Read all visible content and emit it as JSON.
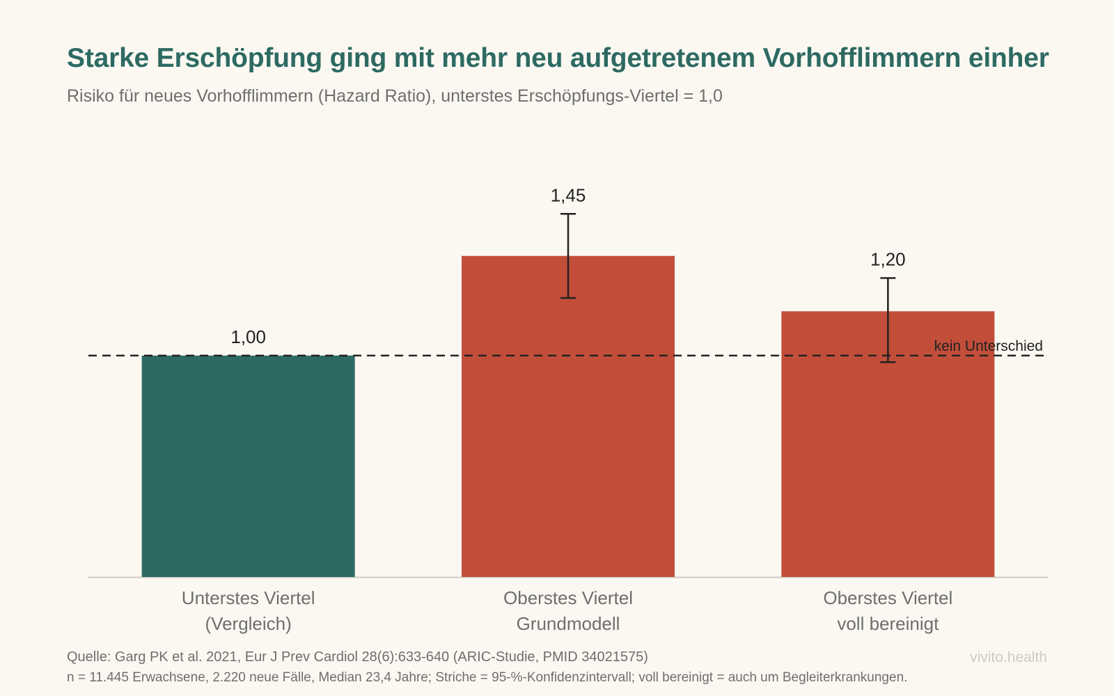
{
  "chart_data": {
    "type": "bar",
    "title": "Starke Erschöpfung ging mit mehr neu aufgetretenem Vorhofflimmern einher",
    "subtitle": "Risiko für neues Vorhofflimmern (Hazard Ratio), unterstes Erschöpfungs-Viertel = 1,0",
    "categories": [
      [
        "Unterstes Viertel",
        "(Vergleich)"
      ],
      [
        "Oberstes Viertel",
        "Grundmodell"
      ],
      [
        "Oberstes Viertel",
        "voll bereinigt"
      ]
    ],
    "values": [
      1.0,
      1.45,
      1.2
    ],
    "value_labels": [
      "1,00",
      "1,45",
      "1,20"
    ],
    "ci": [
      null,
      [
        1.26,
        1.64
      ],
      [
        0.97,
        1.35
      ]
    ],
    "bar_colors": [
      "#2D6A62",
      "#C24E3A",
      "#C24E3A"
    ],
    "ylim": [
      0,
      1.82
    ],
    "reference_line": {
      "value": 1.0,
      "label": "kein Unterschied",
      "style": "dashed"
    },
    "grid": false,
    "legend": "none",
    "xlabel": "",
    "ylabel": ""
  },
  "footer": {
    "source": "Quelle: Garg PK et al. 2021, Eur J Prev Cardiol 28(6):633-640 (ARIC-Studie, PMID 34021575)",
    "note": "n = 11.445 Erwachsene, 2.220 neue Fälle, Median 23,4 Jahre; Striche = 95-%-Konfidenzintervall; voll bereinigt = auch um Begleiterkrankungen.",
    "brand": "vivito.health"
  }
}
